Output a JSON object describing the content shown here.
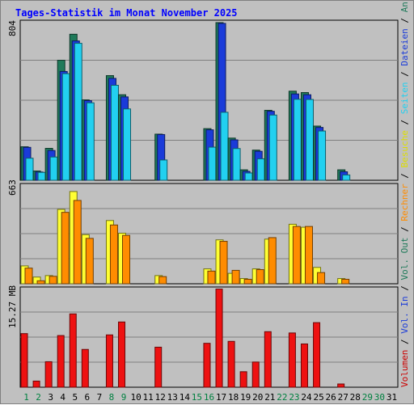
{
  "chart_data": {
    "type": "bar",
    "title": "Tages-Statistik im Monat November 2025",
    "categories": [
      "1",
      "2",
      "3",
      "4",
      "5",
      "6",
      "7",
      "8",
      "9",
      "10",
      "11",
      "12",
      "13",
      "14",
      "15",
      "16",
      "17",
      "18",
      "19",
      "20",
      "21",
      "22",
      "23",
      "24",
      "25",
      "26",
      "27",
      "28",
      "29",
      "30",
      "31"
    ],
    "weekend_days": [
      "1",
      "2",
      "8",
      "9",
      "15",
      "16",
      "22",
      "23",
      "29",
      "30"
    ],
    "panels": [
      {
        "name": "top",
        "scale_max_label": "804",
        "ylim": [
          0,
          804
        ],
        "series": [
          {
            "name": "Anfragen",
            "color": "#1f7a5a",
            "values": [
              170,
              47,
              162,
              609,
              741,
              408,
              0,
              531,
              434,
              0,
              0,
              234,
              0,
              0,
              0,
              262,
              800,
              214,
              53,
              153,
              355,
              0,
              452,
              445,
              275,
              0,
              53,
              0,
              0,
              0,
              0
            ]
          },
          {
            "name": "Dateien",
            "color": "#1a3bd9",
            "values": [
              167,
              42,
              151,
              552,
              707,
              404,
              0,
              517,
              423,
              0,
              0,
              232,
              0,
              0,
              0,
              256,
              796,
              205,
              45,
              147,
              350,
              0,
              438,
              434,
              268,
              0,
              43,
              0,
              0,
              0,
              0
            ]
          },
          {
            "name": "Seiten",
            "color": "#22d0f0",
            "values": [
              112,
              40,
              118,
              541,
              695,
              393,
              0,
              482,
              362,
              0,
              0,
              103,
              0,
              0,
              0,
              168,
              345,
              161,
              37,
              109,
              331,
              0,
              411,
              410,
              250,
              0,
              27,
              0,
              0,
              0,
              0
            ]
          }
        ]
      },
      {
        "name": "middle",
        "scale_max_label": "663",
        "ylim": [
          0,
          663
        ],
        "series": [
          {
            "name": "Besuche",
            "color": "#ffff33",
            "values": [
              120,
              45,
              55,
              500,
              620,
              330,
              0,
              425,
              340,
              0,
              0,
              55,
              0,
              0,
              0,
              100,
              295,
              70,
              35,
              100,
              300,
              0,
              400,
              380,
              110,
              0,
              35,
              0,
              0,
              0,
              0
            ]
          },
          {
            "name": "Rechner",
            "color": "#ff8c00",
            "values": [
              105,
              20,
              50,
              480,
              560,
              305,
              0,
              395,
              325,
              0,
              0,
              48,
              0,
              0,
              0,
              85,
              285,
              90,
              30,
              95,
              310,
              0,
              385,
              385,
              75,
              0,
              30,
              0,
              0,
              0,
              0
            ]
          }
        ]
      },
      {
        "name": "bottom",
        "scale_max_label": "15.27 MB",
        "ylim": [
          0,
          15.27
        ],
        "series": [
          {
            "name": "Volumen",
            "color": "#ee1111",
            "values": [
              8.3,
              0.95,
              3.95,
              8.0,
              11.35,
              5.85,
              0,
              8.1,
              10.1,
              0,
              0,
              6.2,
              0,
              0,
              0,
              6.8,
              15.2,
              7.1,
              2.4,
              3.9,
              8.6,
              0,
              8.4,
              6.7,
              10.0,
              0,
              0.5,
              0,
              0,
              0,
              0
            ]
          }
        ]
      }
    ],
    "right_label_parts": [
      {
        "text": "Volumen",
        "color": "#cc0000"
      },
      {
        "text": " / ",
        "color": "#000000"
      },
      {
        "text": "Vol. In",
        "color": "#1a3bd9"
      },
      {
        "text": " / ",
        "color": "#000000"
      },
      {
        "text": "Vol. Out",
        "color": "#1f7a5a"
      },
      {
        "text": " / ",
        "color": "#000000"
      },
      {
        "text": "Rechner",
        "color": "#ff8c00"
      },
      {
        "text": " / ",
        "color": "#000000"
      },
      {
        "text": "Besuche",
        "color": "#dddd00"
      },
      {
        "text": " / ",
        "color": "#000000"
      },
      {
        "text": "Seiten",
        "color": "#22d0f0"
      },
      {
        "text": " / ",
        "color": "#000000"
      },
      {
        "text": "Dateien",
        "color": "#1a3bd9"
      },
      {
        "text": " / ",
        "color": "#000000"
      },
      {
        "text": "Anfragen",
        "color": "#1f7a5a"
      }
    ],
    "colors": {
      "title": "#0000ff",
      "weekday_label": "#000000",
      "weekend_label": "#008040",
      "background": "#c0c0c0",
      "plot_border": "#000000",
      "gridline": "#808080"
    }
  },
  "__manual_values_note": null
}
